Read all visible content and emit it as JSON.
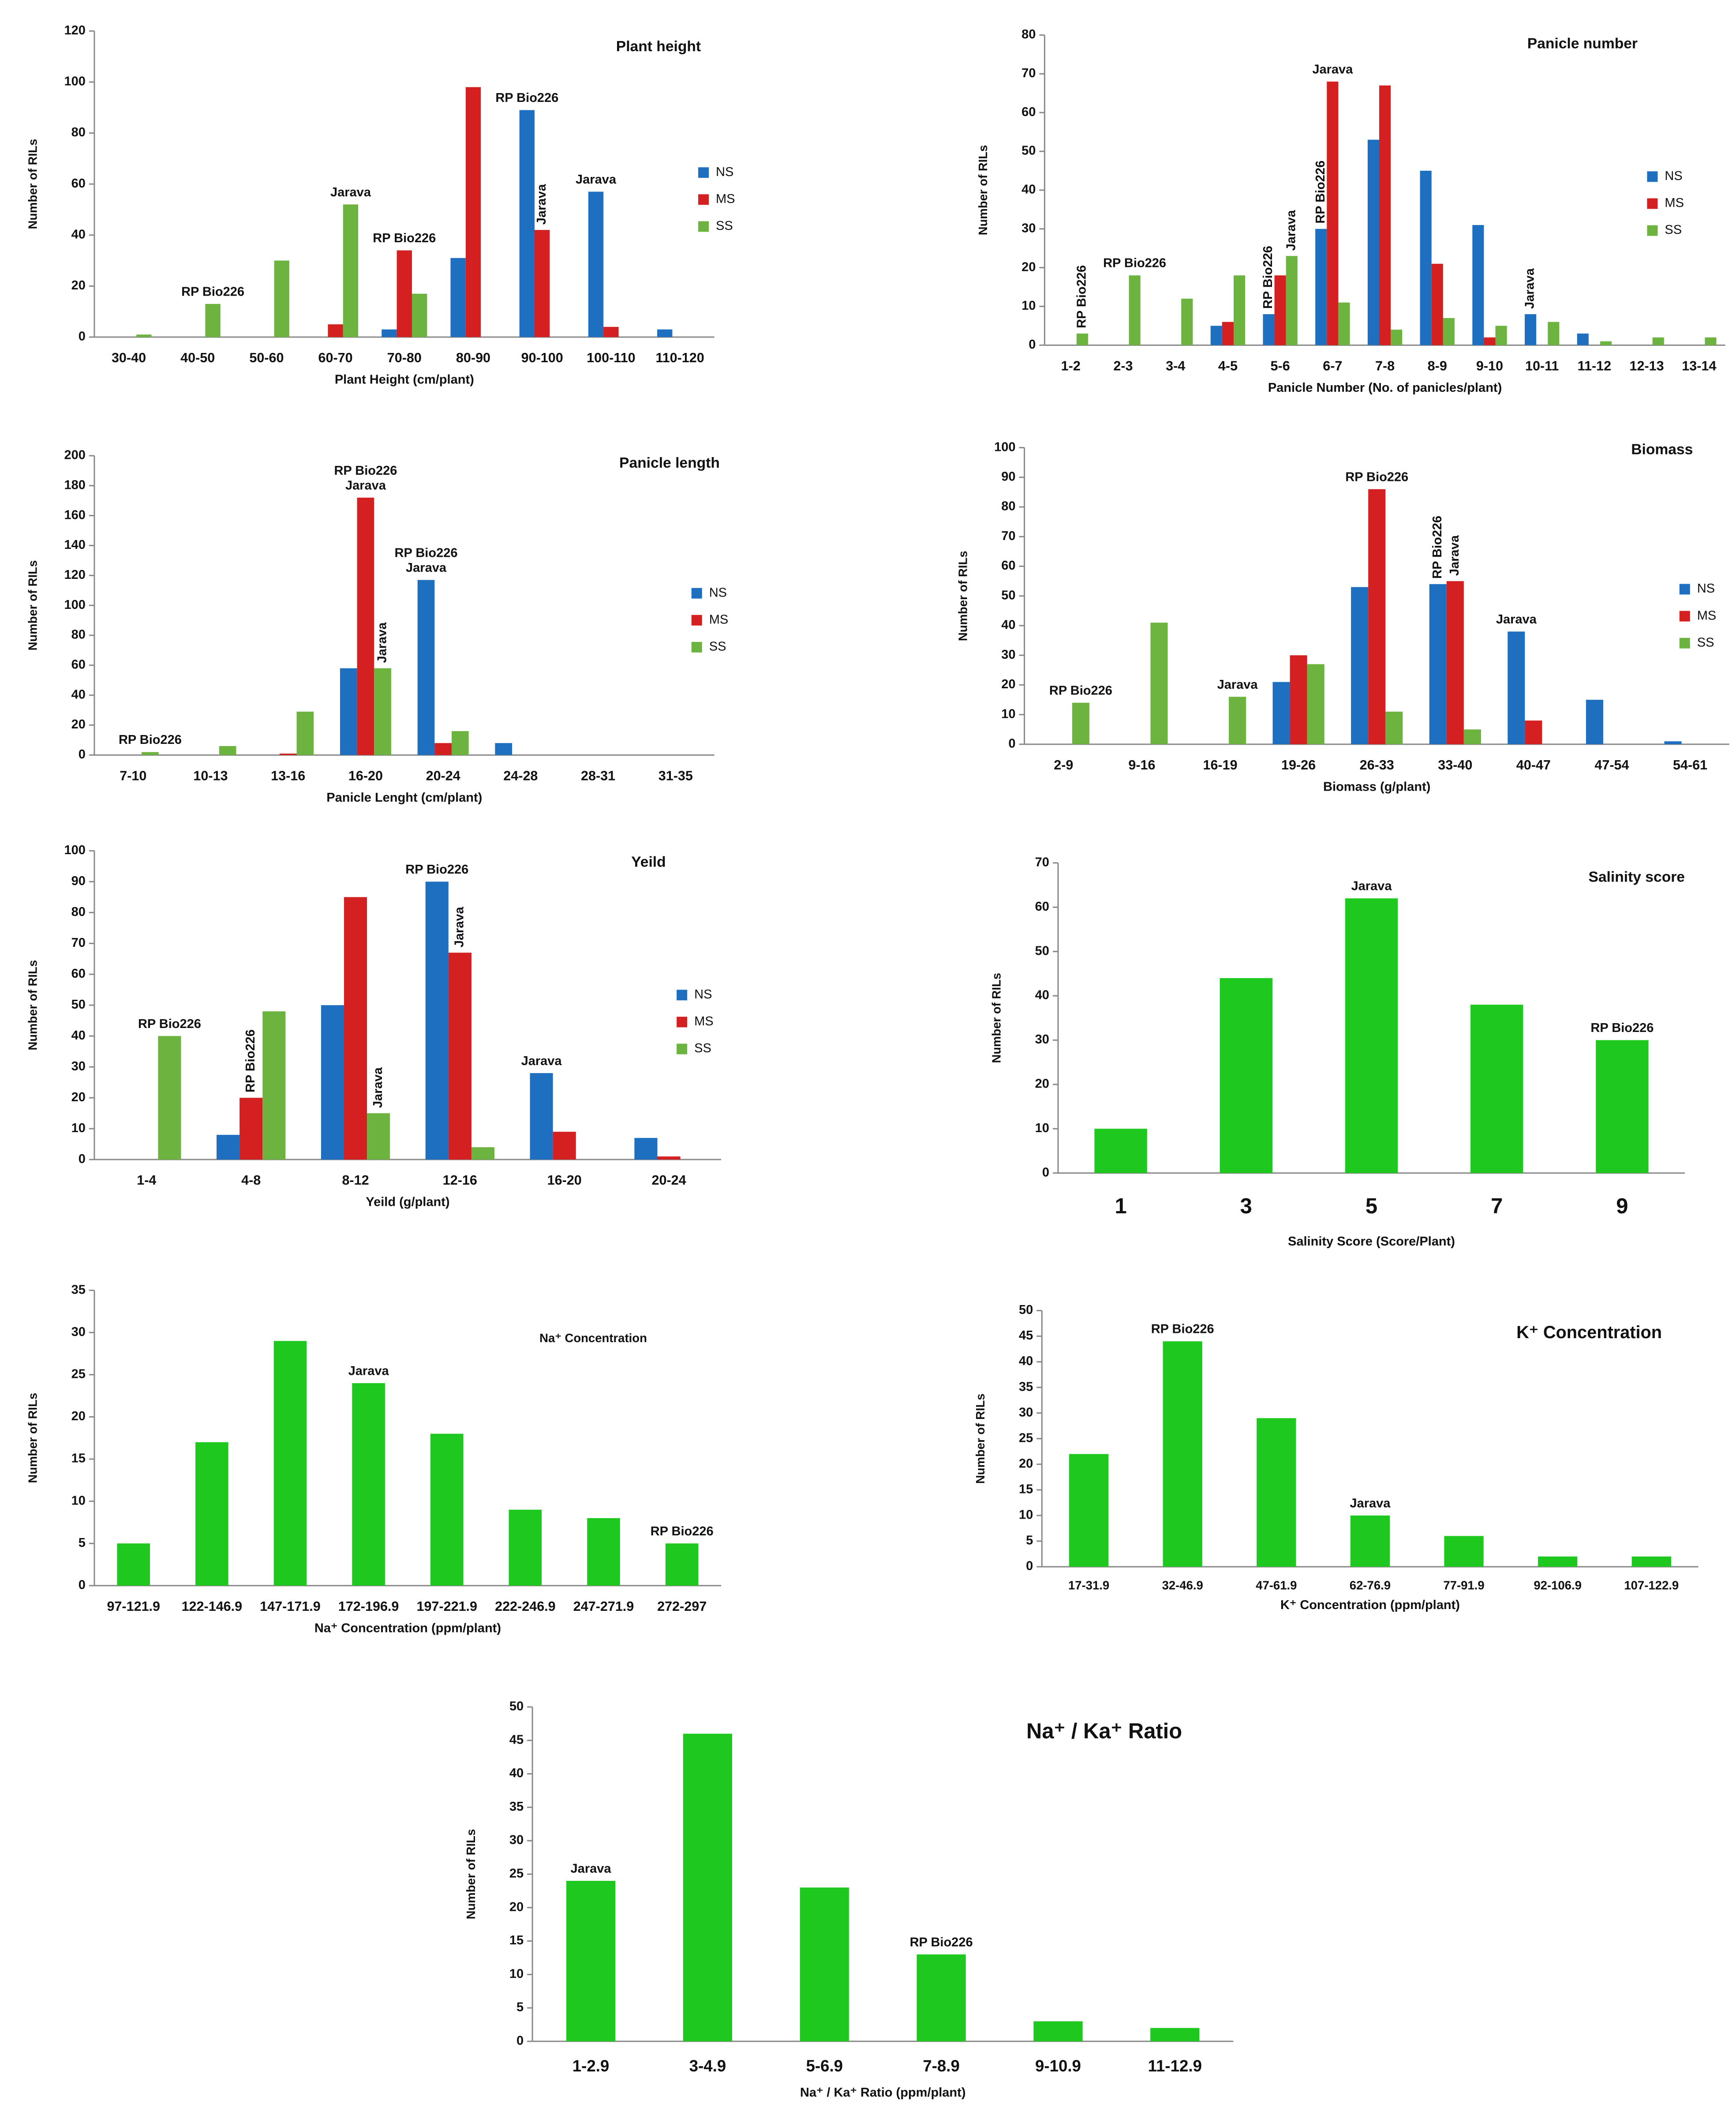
{
  "chart_data": [
    {
      "type": "bar",
      "title": "Plant height",
      "xlabel": "Plant Height (cm/plant)",
      "ylabel": "Number of RILs",
      "legend": "right",
      "categories": [
        "30-40",
        "40-50",
        "50-60",
        "60-70",
        "70-80",
        "80-90",
        "90-100",
        "100-110",
        "110-120"
      ],
      "series": [
        {
          "name": "NS",
          "color": "#1f6fc1",
          "values": [
            0,
            0,
            0,
            0,
            3,
            31,
            89,
            57,
            3
          ]
        },
        {
          "name": "MS",
          "color": "#d42020",
          "values": [
            0,
            0,
            0,
            5,
            34,
            98,
            42,
            4,
            0
          ]
        },
        {
          "name": "SS",
          "color": "#6db33f",
          "values": [
            1,
            13,
            30,
            52,
            17,
            0,
            0,
            0,
            0
          ]
        }
      ],
      "ylim": [
        0,
        120
      ],
      "yticks": [
        0,
        20,
        40,
        60,
        80,
        100,
        120
      ],
      "annotations": [
        {
          "text": "RP Bio226",
          "category": "40-50",
          "series": "SS"
        },
        {
          "text": "Jarava",
          "category": "60-70",
          "series": "SS"
        },
        {
          "text": "RP Bio226",
          "category": "70-80",
          "series": "MS"
        },
        {
          "text": "RP Bio226",
          "category": "90-100",
          "series": "NS"
        },
        {
          "text": "Jarava",
          "category": "90-100",
          "series": "MS",
          "vertical": true
        },
        {
          "text": "Jarava",
          "category": "100-110",
          "series": "NS"
        }
      ]
    },
    {
      "type": "bar",
      "title": "Panicle number",
      "xlabel": "Panicle Number (No. of panicles/plant)",
      "ylabel": "Number of RILs",
      "legend": "right",
      "categories": [
        "1-2",
        "2-3",
        "3-4",
        "4-5",
        "5-6",
        "6-7",
        "7-8",
        "8-9",
        "9-10",
        "10-11",
        "11-12",
        "12-13",
        "13-14"
      ],
      "series": [
        {
          "name": "NS",
          "color": "#1f6fc1",
          "values": [
            0,
            0,
            0,
            5,
            8,
            30,
            53,
            45,
            31,
            8,
            3,
            0,
            0
          ]
        },
        {
          "name": "MS",
          "color": "#d42020",
          "values": [
            0,
            0,
            0,
            6,
            18,
            68,
            67,
            21,
            2,
            0,
            0,
            0,
            0
          ]
        },
        {
          "name": "SS",
          "color": "#6db33f",
          "values": [
            3,
            18,
            12,
            18,
            23,
            11,
            4,
            7,
            5,
            6,
            1,
            2,
            2
          ]
        }
      ],
      "ylim": [
        0,
        80
      ],
      "yticks": [
        0,
        10,
        20,
        30,
        40,
        50,
        60,
        70,
        80
      ],
      "annotations": [
        {
          "text": "RP Bio226",
          "category": "1-2",
          "series": "SS",
          "vertical": true
        },
        {
          "text": "RP Bio226",
          "category": "2-3",
          "series": "SS"
        },
        {
          "text": "RP Bio226",
          "category": "5-6",
          "series": "NS",
          "vertical": true
        },
        {
          "text": "Jarava",
          "category": "5-6",
          "series": "SS",
          "vertical": true
        },
        {
          "text": "RP Bio226",
          "category": "6-7",
          "series": "NS",
          "vertical": true
        },
        {
          "text": "Jarava",
          "category": "6-7",
          "series": "MS"
        },
        {
          "text": "Jarava",
          "category": "10-11",
          "series": "NS",
          "vertical": true
        }
      ]
    },
    {
      "type": "bar",
      "title": "Panicle length",
      "xlabel": "Panicle Lenght (cm/plant)",
      "ylabel": "Number of RILs",
      "legend": "right",
      "categories": [
        "7-10",
        "10-13",
        "13-16",
        "16-20",
        "20-24",
        "24-28",
        "28-31",
        "31-35"
      ],
      "series": [
        {
          "name": "NS",
          "color": "#1f6fc1",
          "values": [
            0,
            0,
            0,
            58,
            117,
            8,
            0,
            0
          ]
        },
        {
          "name": "MS",
          "color": "#d42020",
          "values": [
            0,
            0,
            1,
            172,
            8,
            0,
            0,
            0
          ]
        },
        {
          "name": "SS",
          "color": "#6db33f",
          "values": [
            2,
            6,
            29,
            58,
            16,
            0,
            0,
            0
          ]
        }
      ],
      "ylim": [
        0,
        200
      ],
      "yticks": [
        0,
        20,
        40,
        60,
        80,
        100,
        120,
        140,
        160,
        180,
        200
      ],
      "annotations": [
        {
          "text": "RP Bio226",
          "category": "7-10",
          "series": "SS"
        },
        {
          "text": "RP Bio226",
          "category": "16-20",
          "series": "MS"
        },
        {
          "text": "Jarava",
          "category": "16-20",
          "series": "MS"
        },
        {
          "text": "Jarava",
          "category": "16-20",
          "series": "SS",
          "vertical": true
        },
        {
          "text": "RP Bio226",
          "category": "20-24",
          "series": "NS"
        },
        {
          "text": "Jarava",
          "category": "20-24",
          "series": "NS"
        }
      ]
    },
    {
      "type": "bar",
      "title": "Biomass",
      "xlabel": "Biomass (g/plant)",
      "ylabel": "Number of RILs",
      "legend": "right",
      "categories": [
        "2-9",
        "9-16",
        "16-19",
        "19-26",
        "26-33",
        "33-40",
        "40-47",
        "47-54",
        "54-61"
      ],
      "series": [
        {
          "name": "NS",
          "color": "#1f6fc1",
          "values": [
            0,
            0,
            0,
            21,
            53,
            54,
            38,
            15,
            1
          ]
        },
        {
          "name": "MS",
          "color": "#d42020",
          "values": [
            0,
            0,
            0,
            30,
            86,
            55,
            8,
            0,
            0
          ]
        },
        {
          "name": "SS",
          "color": "#6db33f",
          "values": [
            14,
            41,
            16,
            27,
            11,
            5,
            0,
            0,
            0
          ]
        }
      ],
      "ylim": [
        0,
        100
      ],
      "yticks": [
        0,
        10,
        20,
        30,
        40,
        50,
        60,
        70,
        80,
        90,
        100
      ],
      "annotations": [
        {
          "text": "RP Bio226",
          "category": "2-9",
          "series": "SS"
        },
        {
          "text": "Jarava",
          "category": "16-19",
          "series": "SS"
        },
        {
          "text": "RP Bio226",
          "category": "26-33",
          "series": "MS"
        },
        {
          "text": "RP Bio226",
          "category": "33-40",
          "series": "NS",
          "vertical": true
        },
        {
          "text": "Jarava",
          "category": "33-40",
          "series": "MS",
          "vertical": true
        },
        {
          "text": "Jarava",
          "category": "40-47",
          "series": "NS"
        }
      ]
    },
    {
      "type": "bar",
      "title": "Yeild",
      "xlabel": "Yeild (g/plant)",
      "ylabel": "Number of RILs",
      "legend": "right",
      "categories": [
        "1-4",
        "4-8",
        "8-12",
        "12-16",
        "16-20",
        "20-24"
      ],
      "series": [
        {
          "name": "NS",
          "color": "#1f6fc1",
          "values": [
            0,
            8,
            50,
            90,
            28,
            7
          ]
        },
        {
          "name": "MS",
          "color": "#d42020",
          "values": [
            0,
            20,
            85,
            67,
            9,
            1
          ]
        },
        {
          "name": "SS",
          "color": "#6db33f",
          "values": [
            40,
            48,
            15,
            4,
            0,
            0
          ]
        }
      ],
      "ylim": [
        0,
        100
      ],
      "yticks": [
        0,
        10,
        20,
        30,
        40,
        50,
        60,
        70,
        80,
        90,
        100
      ],
      "annotations": [
        {
          "text": "RP Bio226",
          "category": "1-4",
          "series": "SS"
        },
        {
          "text": "RP Bio226",
          "category": "4-8",
          "series": "MS",
          "vertical": true
        },
        {
          "text": "Jarava",
          "category": "8-12",
          "series": "SS",
          "vertical": true
        },
        {
          "text": "RP Bio226",
          "category": "12-16",
          "series": "NS"
        },
        {
          "text": "Jarava",
          "category": "12-16",
          "series": "MS",
          "vertical": true
        },
        {
          "text": "Jarava",
          "category": "16-20",
          "series": "NS"
        }
      ]
    },
    {
      "type": "bar",
      "title": "Salinity score",
      "xlabel": "Salinity Score (Score/Plant)",
      "ylabel": "Number of RILs",
      "categories": [
        "1",
        "3",
        "5",
        "7",
        "9"
      ],
      "values": [
        10,
        44,
        62,
        38,
        30
      ],
      "color": "#1ec81e",
      "ylim": [
        0,
        70
      ],
      "yticks": [
        0,
        10,
        20,
        30,
        40,
        50,
        60,
        70
      ],
      "annotations": [
        {
          "text": "Jarava",
          "category": "5"
        },
        {
          "text": "RP Bio226",
          "category": "9"
        }
      ]
    },
    {
      "type": "bar",
      "title": "Na⁺ Concentration",
      "xlabel": "Na⁺ Concentration (ppm/plant)",
      "ylabel": "Number of RILs",
      "categories": [
        "97-121.9",
        "122-146.9",
        "147-171.9",
        "172-196.9",
        "197-221.9",
        "222-246.9",
        "247-271.9",
        "272-297"
      ],
      "values": [
        5,
        17,
        29,
        24,
        18,
        9,
        8,
        5
      ],
      "color": "#1ec81e",
      "ylim": [
        0,
        35
      ],
      "yticks": [
        0,
        5,
        10,
        15,
        20,
        25,
        30,
        35
      ],
      "annotations": [
        {
          "text": "Jarava",
          "category": "172-196.9"
        },
        {
          "text": "RP Bio226",
          "category": "272-297"
        }
      ]
    },
    {
      "type": "bar",
      "title": "K⁺ Concentration",
      "xlabel": "K⁺ Concentration (ppm/plant)",
      "ylabel": "Number of RILs",
      "categories": [
        "17-31.9",
        "32-46.9",
        "47-61.9",
        "62-76.9",
        "77-91.9",
        "92-106.9",
        "107-122.9"
      ],
      "values": [
        22,
        44,
        29,
        10,
        6,
        2,
        2
      ],
      "color": "#1ec81e",
      "ylim": [
        0,
        50
      ],
      "yticks": [
        0,
        5,
        10,
        15,
        20,
        25,
        30,
        35,
        40,
        45,
        50
      ],
      "annotations": [
        {
          "text": "RP Bio226",
          "category": "32-46.9"
        },
        {
          "text": "Jarava",
          "category": "62-76.9"
        }
      ]
    },
    {
      "type": "bar",
      "title": "Na⁺ / Ka⁺ Ratio",
      "xlabel": "Na⁺ / Ka⁺ Ratio (ppm/plant)",
      "ylabel": "Number of RILs",
      "categories": [
        "1-2.9",
        "3-4.9",
        "5-6.9",
        "7-8.9",
        "9-10.9",
        "11-12.9"
      ],
      "values": [
        24,
        46,
        23,
        13,
        3,
        2
      ],
      "color": "#1ec81e",
      "ylim": [
        0,
        50
      ],
      "yticks": [
        0,
        5,
        10,
        15,
        20,
        25,
        30,
        35,
        40,
        45,
        50
      ],
      "annotations": [
        {
          "text": "Jarava",
          "category": "1-2.9"
        },
        {
          "text": "RP Bio226",
          "category": "7-8.9"
        }
      ]
    }
  ]
}
